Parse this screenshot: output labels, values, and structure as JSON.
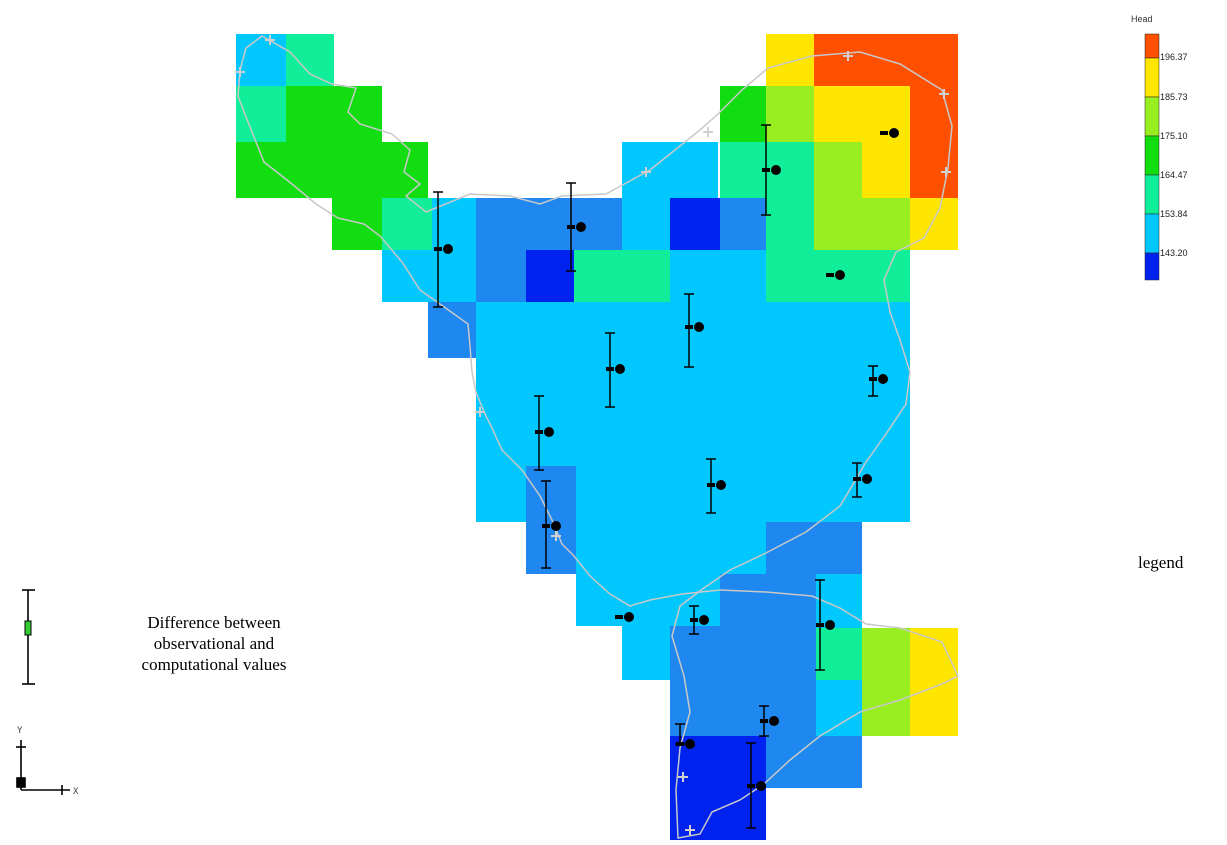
{
  "legend": {
    "title": "Head",
    "values": [
      "196.37",
      "185.73",
      "175.10",
      "164.47",
      "153.84",
      "143.20"
    ],
    "colors": [
      "#ff5000",
      "#ffe600",
      "#99ee22",
      "#11dd11",
      "#11ee99",
      "#00c8ff",
      "#0022ee"
    ],
    "side_label": "legend"
  },
  "error_bar_legend": {
    "label_line1": "Difference between",
    "label_line2": "observational and",
    "label_line3": "computational values"
  },
  "axes_icon": {
    "y_label": "Y",
    "x_label": "X"
  }
}
